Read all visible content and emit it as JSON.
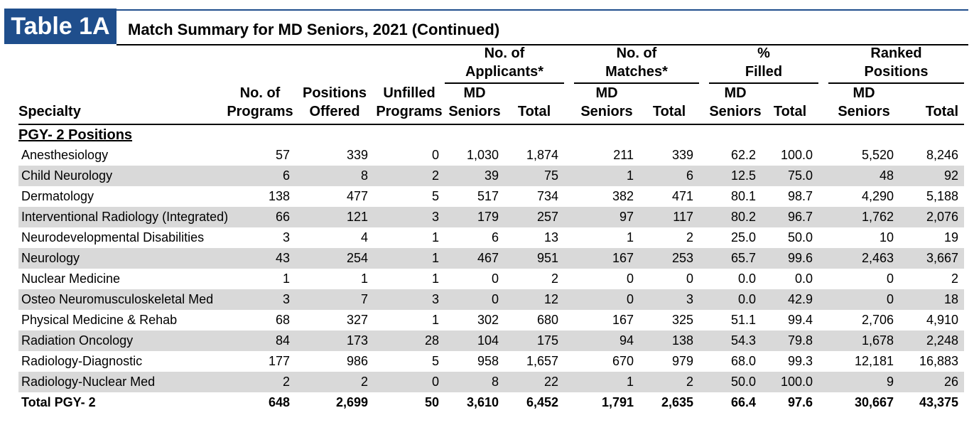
{
  "title": {
    "badge": "Table 1A",
    "text": "Match Summary for MD Seniors, 2021 (Continued)"
  },
  "headers": {
    "specialty": "Specialty",
    "programs": [
      "No. of",
      "Programs"
    ],
    "positions": [
      "Positions",
      "Offered"
    ],
    "unfilled": [
      "Unfilled",
      "Programs"
    ],
    "applicants_group": [
      "No. of",
      "Applicants*"
    ],
    "matches_group": [
      "No. of",
      "Matches*"
    ],
    "filled_group": [
      "%",
      "Filled"
    ],
    "ranked_group": [
      "Ranked",
      "Positions"
    ],
    "md_seniors": [
      "MD",
      "Seniors"
    ],
    "total": "Total"
  },
  "section_label": "PGY- 2 Positions",
  "rows": [
    {
      "specialty": "Anesthesiology",
      "programs": "57",
      "positions": "339",
      "unfilled": "0",
      "app_md": "1,030",
      "app_total": "1,874",
      "match_md": "211",
      "match_total": "339",
      "filled_md": "62.2",
      "filled_total": "100.0",
      "ranked_md": "5,520",
      "ranked_total": "8,246"
    },
    {
      "specialty": "Child Neurology",
      "programs": "6",
      "positions": "8",
      "unfilled": "2",
      "app_md": "39",
      "app_total": "75",
      "match_md": "1",
      "match_total": "6",
      "filled_md": "12.5",
      "filled_total": "75.0",
      "ranked_md": "48",
      "ranked_total": "92"
    },
    {
      "specialty": "Dermatology",
      "programs": "138",
      "positions": "477",
      "unfilled": "5",
      "app_md": "517",
      "app_total": "734",
      "match_md": "382",
      "match_total": "471",
      "filled_md": "80.1",
      "filled_total": "98.7",
      "ranked_md": "4,290",
      "ranked_total": "5,188"
    },
    {
      "specialty": "Interventional Radiology (Integrated)",
      "programs": "66",
      "positions": "121",
      "unfilled": "3",
      "app_md": "179",
      "app_total": "257",
      "match_md": "97",
      "match_total": "117",
      "filled_md": "80.2",
      "filled_total": "96.7",
      "ranked_md": "1,762",
      "ranked_total": "2,076"
    },
    {
      "specialty": "Neurodevelopmental Disabilities",
      "programs": "3",
      "positions": "4",
      "unfilled": "1",
      "app_md": "6",
      "app_total": "13",
      "match_md": "1",
      "match_total": "2",
      "filled_md": "25.0",
      "filled_total": "50.0",
      "ranked_md": "10",
      "ranked_total": "19"
    },
    {
      "specialty": "Neurology",
      "programs": "43",
      "positions": "254",
      "unfilled": "1",
      "app_md": "467",
      "app_total": "951",
      "match_md": "167",
      "match_total": "253",
      "filled_md": "65.7",
      "filled_total": "99.6",
      "ranked_md": "2,463",
      "ranked_total": "3,667"
    },
    {
      "specialty": "Nuclear Medicine",
      "programs": "1",
      "positions": "1",
      "unfilled": "1",
      "app_md": "0",
      "app_total": "2",
      "match_md": "0",
      "match_total": "0",
      "filled_md": "0.0",
      "filled_total": "0.0",
      "ranked_md": "0",
      "ranked_total": "2"
    },
    {
      "specialty": "Osteo Neuromusculoskeletal Med",
      "programs": "3",
      "positions": "7",
      "unfilled": "3",
      "app_md": "0",
      "app_total": "12",
      "match_md": "0",
      "match_total": "3",
      "filled_md": "0.0",
      "filled_total": "42.9",
      "ranked_md": "0",
      "ranked_total": "18"
    },
    {
      "specialty": "Physical Medicine & Rehab",
      "programs": "68",
      "positions": "327",
      "unfilled": "1",
      "app_md": "302",
      "app_total": "680",
      "match_md": "167",
      "match_total": "325",
      "filled_md": "51.1",
      "filled_total": "99.4",
      "ranked_md": "2,706",
      "ranked_total": "4,910"
    },
    {
      "specialty": "Radiation Oncology",
      "programs": "84",
      "positions": "173",
      "unfilled": "28",
      "app_md": "104",
      "app_total": "175",
      "match_md": "94",
      "match_total": "138",
      "filled_md": "54.3",
      "filled_total": "79.8",
      "ranked_md": "1,678",
      "ranked_total": "2,248"
    },
    {
      "specialty": "Radiology-Diagnostic",
      "programs": "177",
      "positions": "986",
      "unfilled": "5",
      "app_md": "958",
      "app_total": "1,657",
      "match_md": "670",
      "match_total": "979",
      "filled_md": "68.0",
      "filled_total": "99.3",
      "ranked_md": "12,181",
      "ranked_total": "16,883"
    },
    {
      "specialty": "Radiology-Nuclear Med",
      "programs": "2",
      "positions": "2",
      "unfilled": "0",
      "app_md": "8",
      "app_total": "22",
      "match_md": "1",
      "match_total": "2",
      "filled_md": "50.0",
      "filled_total": "100.0",
      "ranked_md": "9",
      "ranked_total": "26"
    }
  ],
  "total_row": {
    "specialty": "Total PGY- 2",
    "programs": "648",
    "positions": "2,699",
    "unfilled": "50",
    "app_md": "3,610",
    "app_total": "6,452",
    "match_md": "1,791",
    "match_total": "2,635",
    "filled_md": "66.4",
    "filled_total": "97.6",
    "ranked_md": "30,667",
    "ranked_total": "43,375"
  },
  "colors": {
    "title_blue": "#1f4e8c",
    "row_shade": "#d9d9d9"
  }
}
